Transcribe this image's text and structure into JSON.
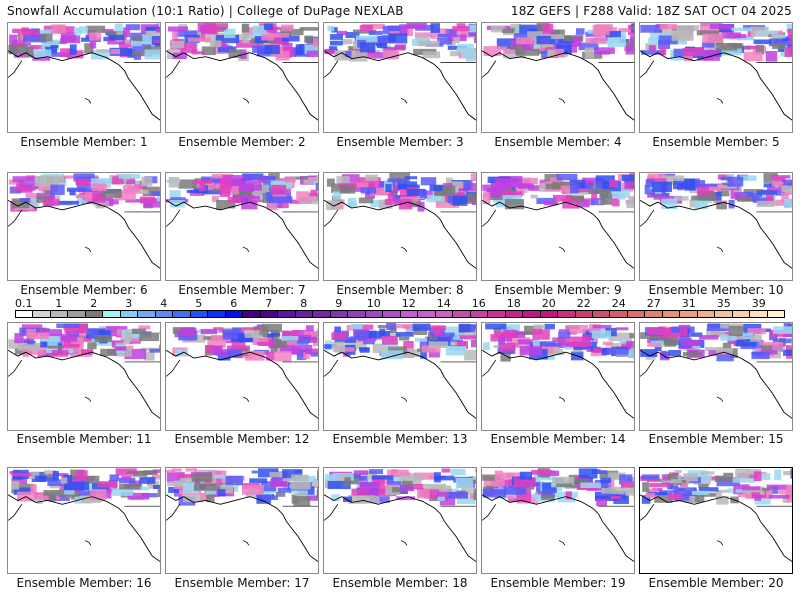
{
  "header": {
    "title": "Snowfall Accumulation (10:1 Ratio) | College of DuPage NEXLAB",
    "run_info": "18Z GEFS | F288 Valid: 18Z SAT OCT 04 2025"
  },
  "panels": [
    {
      "label": "Ensemble Member: 1"
    },
    {
      "label": "Ensemble Member: 2"
    },
    {
      "label": "Ensemble Member: 3"
    },
    {
      "label": "Ensemble Member: 4"
    },
    {
      "label": "Ensemble Member: 5"
    },
    {
      "label": "Ensemble Member: 6"
    },
    {
      "label": "Ensemble Member: 7"
    },
    {
      "label": "Ensemble Member: 8"
    },
    {
      "label": "Ensemble Member: 9"
    },
    {
      "label": "Ensemble Member: 10"
    },
    {
      "label": "Ensemble Member: 11"
    },
    {
      "label": "Ensemble Member: 12"
    },
    {
      "label": "Ensemble Member: 13"
    },
    {
      "label": "Ensemble Member: 14"
    },
    {
      "label": "Ensemble Member: 15"
    },
    {
      "label": "Ensemble Member: 16"
    },
    {
      "label": "Ensemble Member: 17"
    },
    {
      "label": "Ensemble Member: 18"
    },
    {
      "label": "Ensemble Member: 19"
    },
    {
      "label": "Ensemble Member: 20"
    }
  ],
  "colorbar": {
    "ticks": [
      "0.1",
      "1",
      "2",
      "3",
      "4",
      "5",
      "6",
      "7",
      "8",
      "9",
      "10",
      "12",
      "14",
      "16",
      "18",
      "20",
      "22",
      "24",
      "27",
      "31",
      "35",
      "39"
    ],
    "colors": [
      "#ffffff",
      "#d4d4d4",
      "#b8b8b8",
      "#9c9c9c",
      "#7a7a7a",
      "#a6f0f0",
      "#88ccf2",
      "#78a8f0",
      "#5c8cf0",
      "#4070f0",
      "#2850f4",
      "#1030f8",
      "#0010f0",
      "#400080",
      "#500090",
      "#5c1898",
      "#6820a0",
      "#7428a8",
      "#8038b0",
      "#9040b8",
      "#a048c0",
      "#b050c8",
      "#c060d0",
      "#c860c8",
      "#d060c0",
      "#c84cb0",
      "#c840a8",
      "#c83098",
      "#c82090",
      "#c01888",
      "#c01880",
      "#c8307c",
      "#c84070",
      "#cc5070",
      "#d06070",
      "#d87070",
      "#e08070",
      "#e89078",
      "#eca080",
      "#f0b090",
      "#f4c0a0",
      "#f8d0b0",
      "#fce0c0",
      "#fff0d0"
    ]
  },
  "colors": {
    "panel_border": "#888888",
    "selected_border": "#000000"
  }
}
